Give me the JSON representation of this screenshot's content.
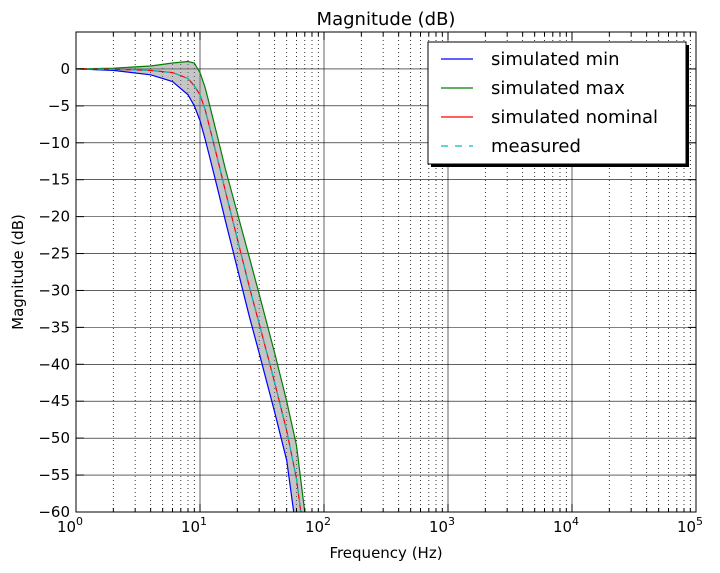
{
  "chart_data": {
    "type": "line",
    "title": "Magnitude (dB)",
    "xlabel": "Frequency (Hz)",
    "ylabel": "Magnitude (dB)",
    "xscale": "log",
    "xlim": [
      1,
      100000
    ],
    "ylim": [
      -60,
      5
    ],
    "grid": true,
    "legend_position": "top-right",
    "x_ticks": [
      {
        "value": 1,
        "base": "10",
        "exp": "0"
      },
      {
        "value": 10,
        "base": "10",
        "exp": "1"
      },
      {
        "value": 100,
        "base": "10",
        "exp": "2"
      },
      {
        "value": 1000,
        "base": "10",
        "exp": "3"
      },
      {
        "value": 10000,
        "base": "10",
        "exp": "4"
      },
      {
        "value": 100000,
        "base": "10",
        "exp": "5"
      }
    ],
    "y_ticks": [
      {
        "value": 0,
        "label": "0"
      },
      {
        "value": -5,
        "label": "−5"
      },
      {
        "value": -10,
        "label": "−10"
      },
      {
        "value": -15,
        "label": "−15"
      },
      {
        "value": -20,
        "label": "−20"
      },
      {
        "value": -25,
        "label": "−25"
      },
      {
        "value": -30,
        "label": "−30"
      },
      {
        "value": -35,
        "label": "−35"
      },
      {
        "value": -40,
        "label": "−40"
      },
      {
        "value": -45,
        "label": "−45"
      },
      {
        "value": -50,
        "label": "−50"
      },
      {
        "value": -55,
        "label": "−55"
      },
      {
        "value": -60,
        "label": "−60"
      }
    ],
    "band_color": "#7f7f7f",
    "series": [
      {
        "name": "simulated min",
        "color": "#0000ff",
        "dash": "solid",
        "x": [
          1,
          2,
          4,
          6,
          8,
          9,
          10,
          11,
          12,
          14,
          16,
          20,
          25,
          30,
          40,
          50,
          57
        ],
        "y": [
          0,
          -0.2,
          -0.8,
          -1.7,
          -3.5,
          -5,
          -7,
          -9.5,
          -12,
          -16.5,
          -20.5,
          -27,
          -33.5,
          -38.5,
          -46.5,
          -53,
          -60
        ]
      },
      {
        "name": "simulated max",
        "color": "#008000",
        "dash": "solid",
        "x": [
          1,
          2,
          4,
          6,
          8,
          9,
          10,
          11,
          12,
          14,
          16,
          20,
          25,
          30,
          40,
          50,
          60,
          70
        ],
        "y": [
          0,
          0.1,
          0.4,
          0.8,
          1,
          0.8,
          -0.5,
          -2.5,
          -5,
          -9.5,
          -13.5,
          -19.5,
          -25.5,
          -30.5,
          -38.5,
          -45,
          -51,
          -60
        ]
      },
      {
        "name": "simulated nominal",
        "color": "#ff0000",
        "dash": "solid",
        "x": [
          1,
          2,
          4,
          6,
          8,
          9,
          10,
          11,
          12,
          14,
          16,
          20,
          25,
          30,
          40,
          50,
          60,
          65
        ],
        "y": [
          0,
          -0.05,
          -0.2,
          -0.5,
          -1.3,
          -2.3,
          -3.5,
          -5.5,
          -8,
          -12.5,
          -16.5,
          -23,
          -29.5,
          -34.5,
          -42.5,
          -49,
          -55.5,
          -60
        ]
      },
      {
        "name": "measured",
        "color": "#00bfbf",
        "dash": "dashed",
        "x": [
          1,
          2,
          4,
          6,
          8,
          9,
          10,
          11,
          12,
          14,
          16,
          20,
          25,
          30,
          40,
          50,
          60,
          65
        ],
        "y": [
          0,
          -0.05,
          -0.2,
          -0.5,
          -1.3,
          -2.3,
          -3.5,
          -5.5,
          -8,
          -12.5,
          -16.5,
          -23,
          -29.5,
          -34.5,
          -42.5,
          -49,
          -55.5,
          -60
        ]
      }
    ]
  }
}
